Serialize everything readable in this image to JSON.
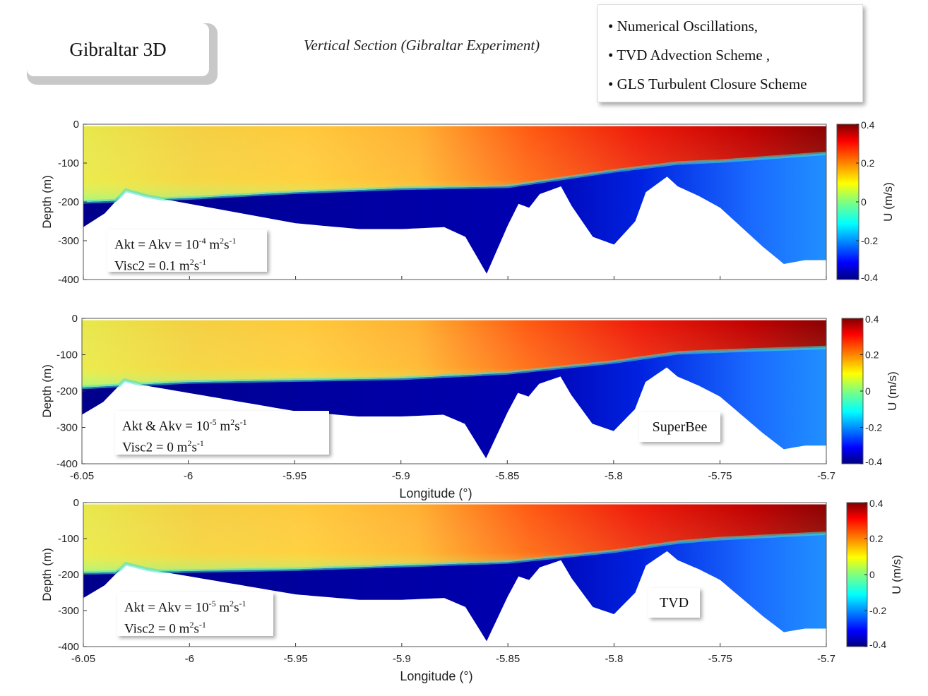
{
  "header": {
    "title": "Gibraltar 3D",
    "subtitle": "Vertical Section (Gibraltar Experiment)",
    "bullets": [
      "Numerical Oscillations,",
      "TVD Advection Scheme ,",
      "GLS Turbulent Closure Scheme"
    ]
  },
  "panels": [
    {
      "params_line1": {
        "base": "Akt = Akv = 10",
        "exp": "-4",
        "unit": " m",
        "unit_exp": "2",
        "unit2": "s",
        "unit2_exp": "-1"
      },
      "params_line2": {
        "base": "Visc2 = 0.1 m",
        "unit_exp": "2",
        "unit2": "s",
        "unit2_exp": "-1"
      },
      "tag": ""
    },
    {
      "params_line1": {
        "base": "Akt & Akv = 10",
        "exp": "-5",
        "unit": " m",
        "unit_exp": "2",
        "unit2": "s",
        "unit2_exp": "-1"
      },
      "params_line2": {
        "base": "Visc2 = 0 m",
        "unit_exp": "2",
        "unit2": "s",
        "unit2_exp": "-1"
      },
      "tag": "SuperBee"
    },
    {
      "params_line1": {
        "base": "Akt = Akv = 10",
        "exp": "-5",
        "unit": " m",
        "unit_exp": "2",
        "unit2": "s",
        "unit2_exp": "-1"
      },
      "params_line2": {
        "base": "Visc2 = 0 m",
        "unit_exp": "2",
        "unit2": "s",
        "unit2_exp": "-1"
      },
      "tag": "TVD"
    }
  ],
  "chart_data": [
    {
      "type": "heatmap",
      "title": "",
      "xlabel": "",
      "ylabel": "Depth (m)",
      "xlim": [
        -6.05,
        -5.7
      ],
      "ylim": [
        -400,
        0
      ],
      "yticks": [
        0,
        -100,
        -200,
        -300,
        -400
      ],
      "xticks": [],
      "colorbar": {
        "label": "U (m/s)",
        "range": [
          -0.4,
          0.4
        ],
        "ticks": [
          "0.4",
          "0.2",
          "0",
          "-0.2",
          "-0.4"
        ],
        "colormap": "jet"
      },
      "bathymetry": {
        "x": [
          -6.05,
          -6.04,
          -6.03,
          -6.02,
          -6.0,
          -5.98,
          -5.95,
          -5.92,
          -5.9,
          -5.88,
          -5.87,
          -5.86,
          -5.85,
          -5.845,
          -5.84,
          -5.835,
          -5.825,
          -5.82,
          -5.81,
          -5.8,
          -5.79,
          -5.785,
          -5.775,
          -5.77,
          -5.76,
          -5.75,
          -5.74,
          -5.73,
          -5.72,
          -5.71,
          -5.7
        ],
        "depth": [
          -265,
          -230,
          -170,
          -185,
          -205,
          -225,
          -255,
          -270,
          -270,
          -265,
          -290,
          -385,
          -260,
          -205,
          -215,
          -180,
          -160,
          -210,
          -290,
          -310,
          -250,
          -175,
          -135,
          -160,
          -185,
          -215,
          -265,
          -315,
          -360,
          -350,
          -350
        ]
      },
      "interface_depth": {
        "x": [
          -6.05,
          -6.0,
          -5.95,
          -5.9,
          -5.85,
          -5.8,
          -5.77,
          -5.75,
          -5.7
        ],
        "depth": [
          -200,
          -190,
          -175,
          -165,
          -160,
          -120,
          -100,
          -95,
          -75
        ]
      }
    },
    {
      "type": "heatmap",
      "title": "",
      "xlabel": "Longitude (°)",
      "ylabel": "Depth (m)",
      "xlim": [
        -6.05,
        -5.7
      ],
      "ylim": [
        -400,
        0
      ],
      "yticks": [
        0,
        -100,
        -200,
        -300,
        -400
      ],
      "xticks": [
        "-6.05",
        "-6",
        "-5.95",
        "-5.9",
        "-5.85",
        "-5.8",
        "-5.75",
        "-5.7"
      ],
      "colorbar": {
        "label": "U (m/s)",
        "range": [
          -0.4,
          0.4
        ],
        "ticks": [
          "0.4",
          "0.2",
          "0",
          "-0.2",
          "-0.4"
        ],
        "colormap": "jet"
      },
      "bathymetry": {
        "x": [
          -6.05,
          -6.04,
          -6.03,
          -6.02,
          -6.0,
          -5.98,
          -5.95,
          -5.92,
          -5.9,
          -5.88,
          -5.87,
          -5.86,
          -5.85,
          -5.845,
          -5.84,
          -5.835,
          -5.825,
          -5.82,
          -5.81,
          -5.8,
          -5.79,
          -5.785,
          -5.775,
          -5.77,
          -5.76,
          -5.75,
          -5.74,
          -5.73,
          -5.72,
          -5.71,
          -5.7
        ],
        "depth": [
          -265,
          -230,
          -170,
          -185,
          -205,
          -225,
          -255,
          -270,
          -270,
          -265,
          -290,
          -385,
          -260,
          -205,
          -215,
          -180,
          -160,
          -210,
          -290,
          -310,
          -250,
          -175,
          -135,
          -160,
          -185,
          -215,
          -265,
          -315,
          -360,
          -350,
          -350
        ]
      },
      "interface_depth": {
        "x": [
          -6.05,
          -6.0,
          -5.95,
          -5.9,
          -5.85,
          -5.8,
          -5.77,
          -5.75,
          -5.7
        ],
        "depth": [
          -190,
          -175,
          -170,
          -165,
          -150,
          -120,
          -95,
          -90,
          -80
        ]
      }
    },
    {
      "type": "heatmap",
      "title": "",
      "xlabel": "Longitude (°)",
      "ylabel": "Depth (m)",
      "xlim": [
        -6.05,
        -5.7
      ],
      "ylim": [
        -400,
        0
      ],
      "yticks": [
        0,
        -100,
        -200,
        -300,
        -400
      ],
      "xticks": [
        "-6.05",
        "-6",
        "-5.95",
        "-5.9",
        "-5.85",
        "-5.8",
        "-5.75",
        "-5.7"
      ],
      "colorbar": {
        "label": "U (m/s)",
        "range": [
          -0.4,
          0.4
        ],
        "ticks": [
          "0.4",
          "0.2",
          "0",
          "-0.2",
          "-0.4"
        ],
        "colormap": "jet"
      },
      "bathymetry": {
        "x": [
          -6.05,
          -6.04,
          -6.03,
          -6.02,
          -6.0,
          -5.98,
          -5.95,
          -5.92,
          -5.9,
          -5.88,
          -5.87,
          -5.86,
          -5.85,
          -5.845,
          -5.84,
          -5.835,
          -5.825,
          -5.82,
          -5.81,
          -5.8,
          -5.79,
          -5.785,
          -5.775,
          -5.77,
          -5.76,
          -5.75,
          -5.74,
          -5.73,
          -5.72,
          -5.71,
          -5.7
        ],
        "depth": [
          -265,
          -230,
          -170,
          -185,
          -205,
          -225,
          -255,
          -270,
          -270,
          -265,
          -290,
          -385,
          -260,
          -205,
          -215,
          -180,
          -160,
          -210,
          -290,
          -310,
          -250,
          -175,
          -135,
          -160,
          -185,
          -215,
          -265,
          -315,
          -360,
          -350,
          -350
        ]
      },
      "interface_depth": {
        "x": [
          -6.05,
          -6.0,
          -5.95,
          -5.9,
          -5.85,
          -5.8,
          -5.77,
          -5.75,
          -5.7
        ],
        "depth": [
          -195,
          -190,
          -185,
          -175,
          -165,
          -135,
          -110,
          -100,
          -85
        ]
      }
    }
  ]
}
